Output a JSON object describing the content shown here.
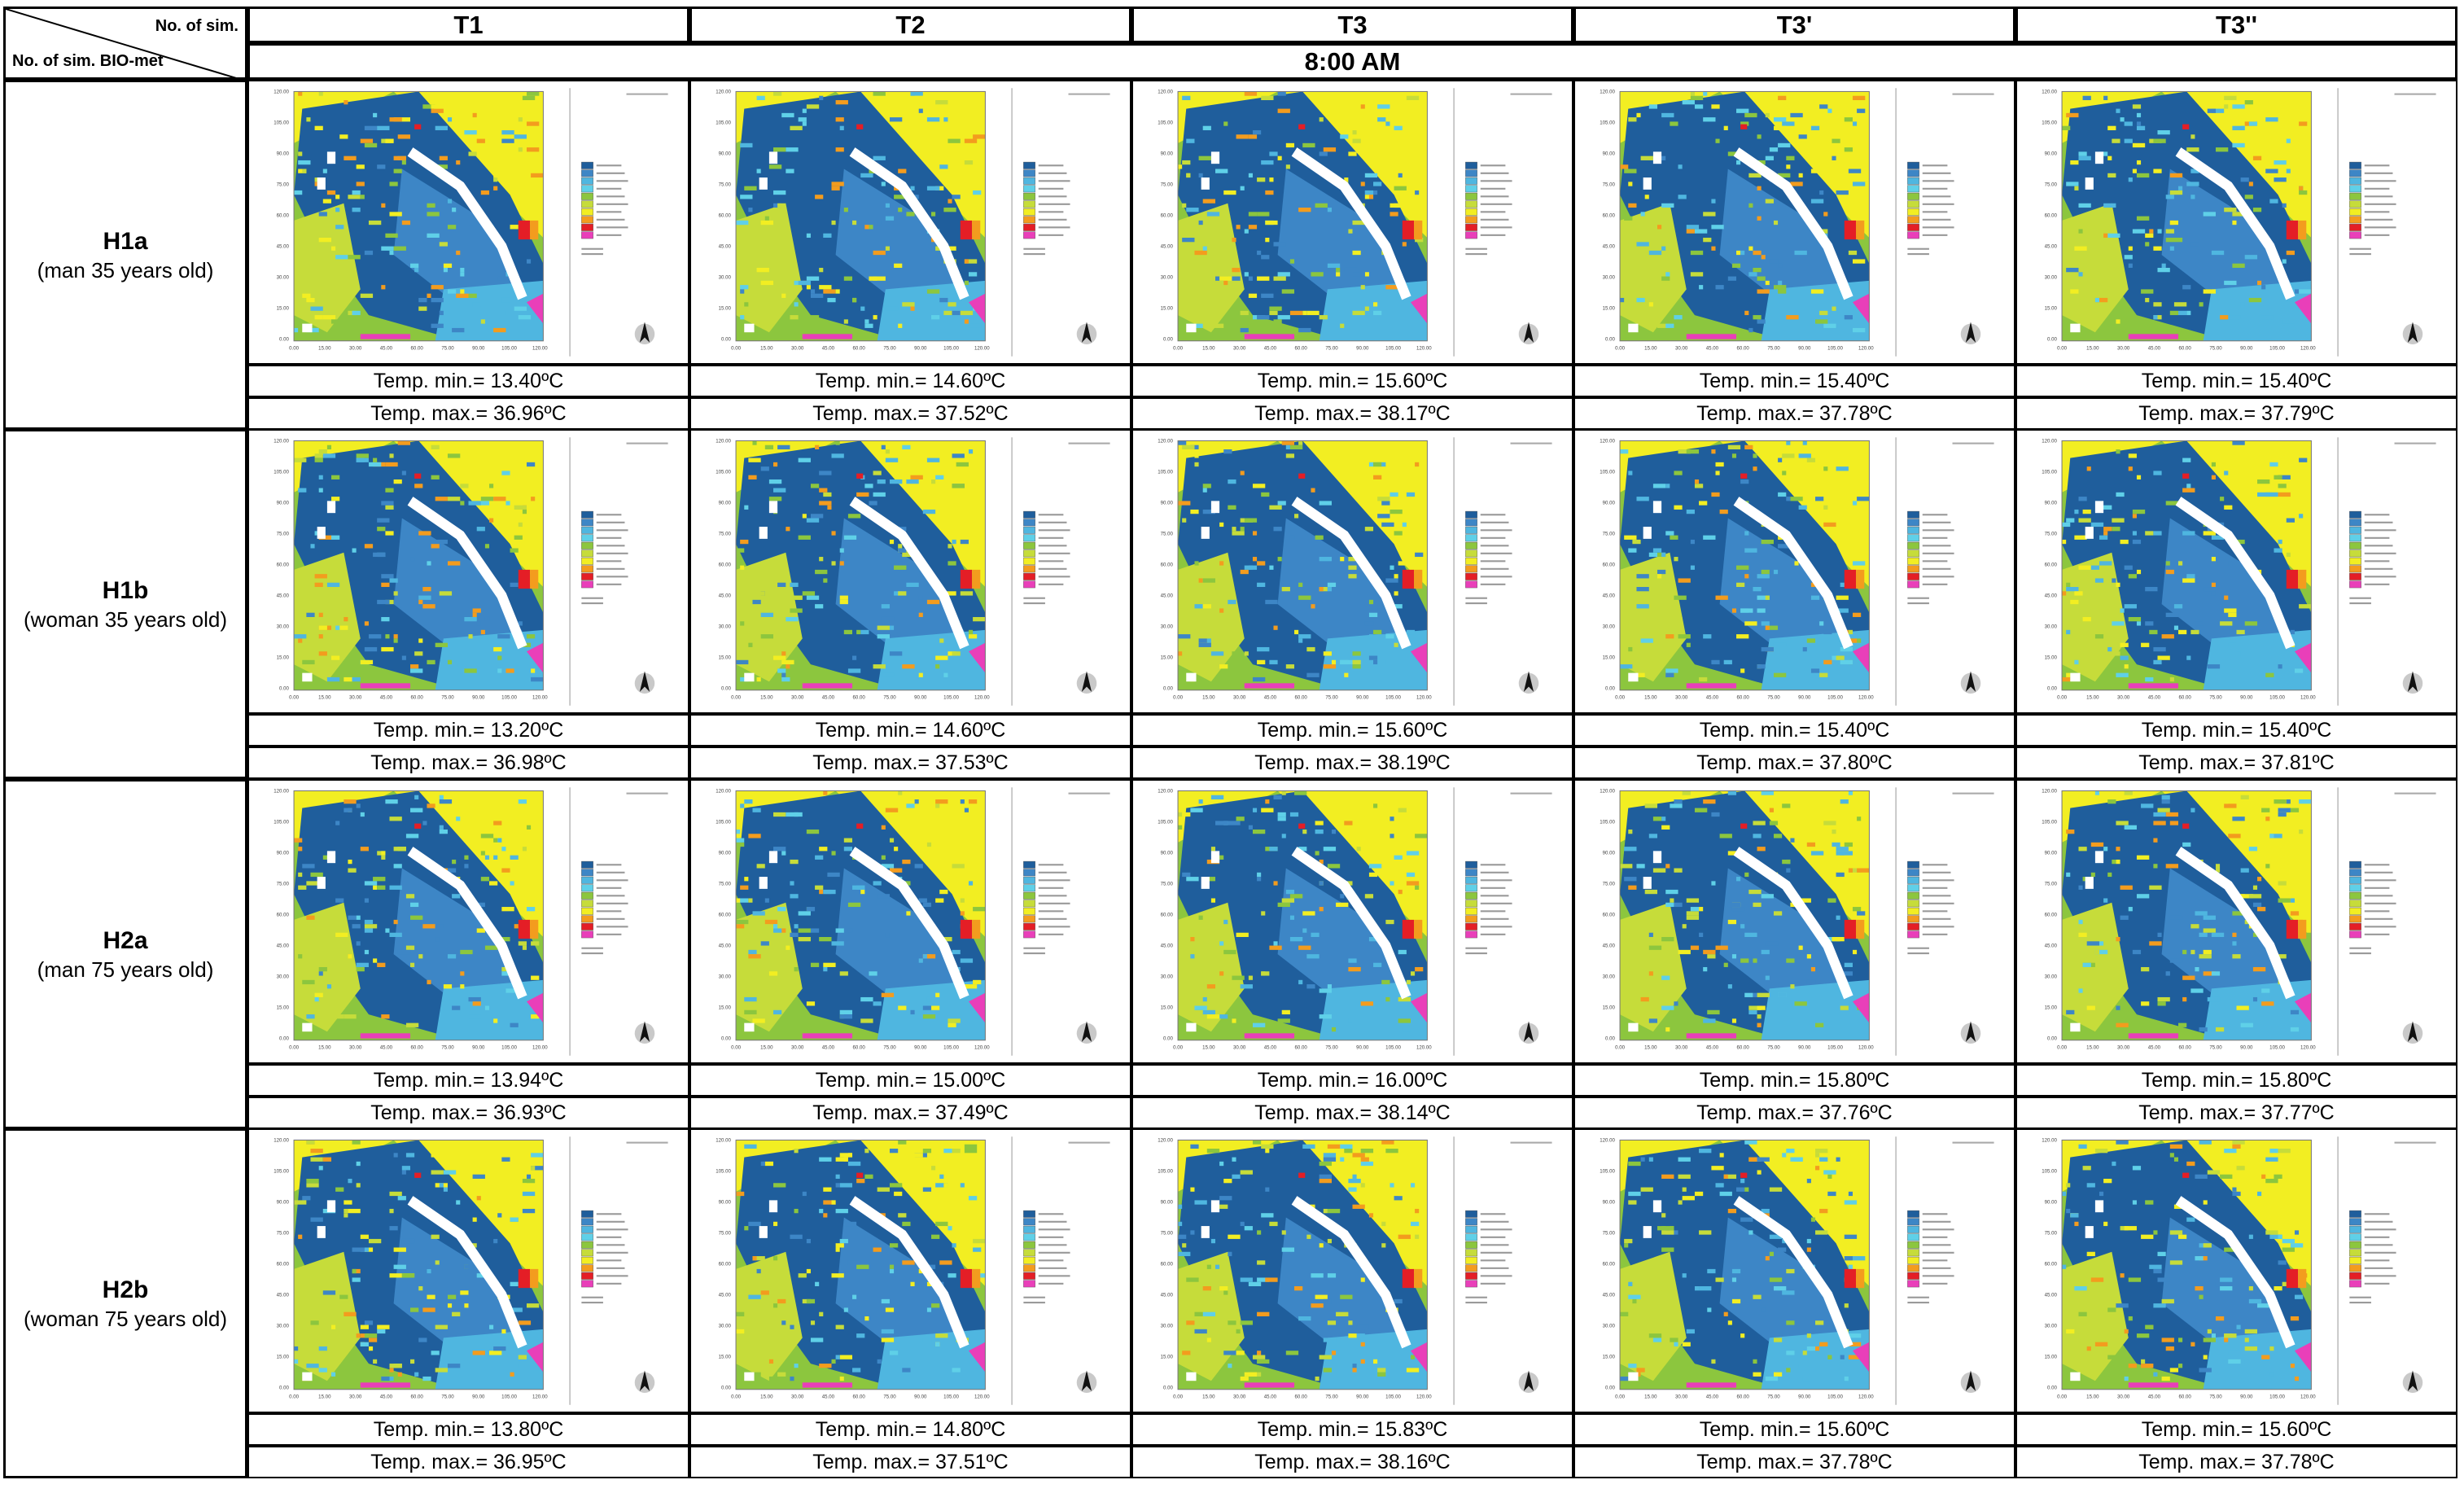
{
  "header": {
    "corner_top": "No. of sim.",
    "corner_bottom": "No. of sim. BIO-met",
    "columns": [
      "T1",
      "T2",
      "T3",
      "T3'",
      "T3''"
    ],
    "time": "8:00 AM"
  },
  "rows": [
    {
      "code": "H1a",
      "desc": "(man 35 years old)",
      "cells": [
        {
          "min": "Temp. min.= 13.40ºC",
          "max": "Temp. max.= 36.96ºC"
        },
        {
          "min": "Temp. min.= 14.60ºC",
          "max": "Temp. max.= 37.52ºC"
        },
        {
          "min": "Temp. min.= 15.60ºC",
          "max": "Temp. max.= 38.17ºC"
        },
        {
          "min": "Temp. min.= 15.40ºC",
          "max": "Temp. max.= 37.78ºC"
        },
        {
          "min": "Temp. min.= 15.40ºC",
          "max": "Temp. max.= 37.79ºC"
        }
      ]
    },
    {
      "code": "H1b",
      "desc": "(woman 35 years old)",
      "cells": [
        {
          "min": "Temp. min.= 13.20ºC",
          "max": "Temp. max.= 36.98ºC"
        },
        {
          "min": "Temp. min.= 14.60ºC",
          "max": "Temp. max.= 37.53ºC"
        },
        {
          "min": "Temp. min.= 15.60ºC",
          "max": "Temp. max.= 38.19ºC"
        },
        {
          "min": "Temp. min.= 15.40ºC",
          "max": "Temp. max.= 37.80ºC"
        },
        {
          "min": "Temp. min.= 15.40ºC",
          "max": "Temp. max.= 37.81ºC"
        }
      ]
    },
    {
      "code": "H2a",
      "desc": "(man 75 years old)",
      "cells": [
        {
          "min": "Temp. min.= 13.94ºC",
          "max": "Temp. max.= 36.93ºC"
        },
        {
          "min": "Temp. min.= 15.00ºC",
          "max": "Temp. max.= 37.49ºC"
        },
        {
          "min": "Temp. min.= 16.00ºC",
          "max": "Temp. max.= 38.14ºC"
        },
        {
          "min": "Temp. min.= 15.80ºC",
          "max": "Temp. max.= 37.76ºC"
        },
        {
          "min": "Temp. min.= 15.80ºC",
          "max": "Temp. max.= 37.77ºC"
        }
      ]
    },
    {
      "code": "H2b",
      "desc": "(woman 75 years old)",
      "cells": [
        {
          "min": "Temp. min.= 13.80ºC",
          "max": "Temp. max.= 36.95ºC"
        },
        {
          "min": "Temp. min.= 14.80ºC",
          "max": "Temp. max.= 37.51ºC"
        },
        {
          "min": "Temp. min.= 15.83ºC",
          "max": "Temp. max.= 38.16ºC"
        },
        {
          "min": "Temp. min.= 15.60ºC",
          "max": "Temp. max.= 37.78ºC"
        },
        {
          "min": "Temp. min.= 15.60ºC",
          "max": "Temp. max.= 37.78ºC"
        }
      ]
    }
  ],
  "map_legend_title": "PET",
  "colors": {
    "dark_blue": "#1f5e9c",
    "mid_blue": "#3d86c6",
    "light_blue": "#4fb6e0",
    "cyan": "#5fd0e8",
    "green": "#8cc63e",
    "yellow_green": "#c6dc3a",
    "yellow": "#f2ee22",
    "orange": "#f39c1e",
    "red": "#e41e26",
    "magenta": "#e93fb9",
    "white": "#ffffff"
  }
}
